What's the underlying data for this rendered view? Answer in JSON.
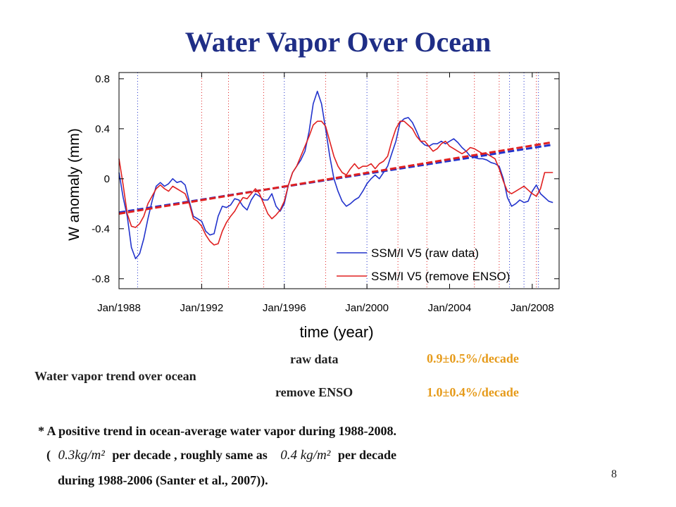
{
  "slide": {
    "title": "Water Vapor Over Ocean",
    "page_number": "8"
  },
  "trend_table": {
    "label": "Water vapor trend over ocean",
    "rows": [
      {
        "name": "raw data",
        "value": "0.9±0.5%/decade"
      },
      {
        "name": "remove ENSO",
        "value": "1.0±0.4%/decade"
      }
    ]
  },
  "note": {
    "line1": "* A positive trend in ocean-average water vapor during 1988-2008.",
    "open_paren": "(",
    "math1": "0.3kg/m²",
    "mid": "per decade , roughly same as",
    "math2": "0.4 kg/m²",
    "end": "per decade",
    "line3": "during 1988-2006 (Santer et al., 2007))."
  },
  "colors": {
    "title": "#1f2e86",
    "raw": "#2233cc",
    "enso": "#e02020",
    "trend_text": "#e69b1b"
  },
  "chart_data": {
    "type": "line",
    "xlabel": "time (year)",
    "ylabel": "W anomaly (mm)",
    "xlim": [
      1988.0,
      2009.3
    ],
    "ylim": [
      -0.88,
      0.85
    ],
    "x_ticks": [
      1988,
      1992,
      1996,
      2000,
      2004,
      2008
    ],
    "x_tick_labels": [
      "Jan/1988",
      "Jan/1992",
      "Jan/1996",
      "Jan/2000",
      "Jan/2004",
      "Jan/2008"
    ],
    "y_ticks": [
      -0.8,
      -0.4,
      0,
      0.4,
      0.8
    ],
    "y_tick_labels": [
      "-0.8",
      "-0.4",
      "0",
      "0.4",
      "0.8"
    ],
    "legend_position": "bottom-right",
    "reference_lines": {
      "blue_dotted": [
        1988.9,
        1996.0,
        2000.0,
        2006.9,
        2007.6,
        2008.3
      ],
      "red_dotted": [
        1992.0,
        1993.3,
        1995.0,
        1998.0,
        2001.5,
        2002.9,
        2005.2,
        2006.4,
        2008.2
      ]
    },
    "series": [
      {
        "name": "SSM/I V5 (raw data)",
        "color": "#2233cc",
        "x": [
          1988.0,
          1988.2,
          1988.4,
          1988.6,
          1988.8,
          1989.0,
          1989.2,
          1989.4,
          1989.6,
          1989.8,
          1990.0,
          1990.2,
          1990.4,
          1990.6,
          1990.8,
          1991.0,
          1991.2,
          1991.4,
          1991.6,
          1991.8,
          1992.0,
          1992.2,
          1992.4,
          1992.6,
          1992.8,
          1993.0,
          1993.2,
          1993.4,
          1993.6,
          1993.8,
          1994.0,
          1994.2,
          1994.4,
          1994.6,
          1994.8,
          1995.0,
          1995.2,
          1995.4,
          1995.6,
          1995.8,
          1996.0,
          1996.2,
          1996.4,
          1996.6,
          1996.8,
          1997.0,
          1997.2,
          1997.4,
          1997.6,
          1997.8,
          1998.0,
          1998.2,
          1998.4,
          1998.6,
          1998.8,
          1999.0,
          1999.2,
          1999.4,
          1999.6,
          1999.8,
          2000.0,
          2000.2,
          2000.4,
          2000.6,
          2000.8,
          2001.0,
          2001.2,
          2001.4,
          2001.6,
          2001.8,
          2002.0,
          2002.2,
          2002.4,
          2002.6,
          2002.8,
          2003.0,
          2003.2,
          2003.4,
          2003.6,
          2003.8,
          2004.0,
          2004.2,
          2004.4,
          2004.6,
          2004.8,
          2005.0,
          2005.2,
          2005.4,
          2005.6,
          2005.8,
          2006.0,
          2006.2,
          2006.4,
          2006.6,
          2006.8,
          2007.0,
          2007.2,
          2007.4,
          2007.6,
          2007.8,
          2008.0,
          2008.2,
          2008.4,
          2008.6,
          2008.8,
          2009.0
        ],
        "values": [
          0.05,
          -0.15,
          -0.3,
          -0.55,
          -0.64,
          -0.6,
          -0.48,
          -0.32,
          -0.18,
          -0.06,
          -0.03,
          -0.06,
          -0.04,
          0.0,
          -0.03,
          -0.02,
          -0.05,
          -0.18,
          -0.3,
          -0.32,
          -0.34,
          -0.42,
          -0.45,
          -0.44,
          -0.3,
          -0.22,
          -0.23,
          -0.21,
          -0.16,
          -0.17,
          -0.22,
          -0.25,
          -0.17,
          -0.12,
          -0.14,
          -0.17,
          -0.17,
          -0.12,
          -0.22,
          -0.26,
          -0.2,
          -0.05,
          0.05,
          0.1,
          0.15,
          0.22,
          0.38,
          0.6,
          0.7,
          0.6,
          0.4,
          0.18,
          0.0,
          -0.1,
          -0.18,
          -0.22,
          -0.2,
          -0.17,
          -0.15,
          -0.1,
          -0.04,
          0.0,
          0.03,
          0.0,
          0.05,
          0.1,
          0.2,
          0.3,
          0.45,
          0.48,
          0.49,
          0.45,
          0.38,
          0.3,
          0.27,
          0.26,
          0.28,
          0.28,
          0.3,
          0.28,
          0.3,
          0.32,
          0.29,
          0.25,
          0.22,
          0.18,
          0.17,
          0.16,
          0.16,
          0.15,
          0.13,
          0.12,
          0.1,
          0.0,
          -0.15,
          -0.22,
          -0.2,
          -0.17,
          -0.19,
          -0.18,
          -0.1,
          -0.05,
          -0.12,
          -0.15,
          -0.18,
          -0.19
        ],
        "trend": [
          [
            1988.0,
            -0.27
          ],
          [
            2008.9,
            0.27
          ]
        ]
      },
      {
        "name": "SSM/I V5 (remove ENSO)",
        "color": "#e02020",
        "x": [
          1988.0,
          1988.2,
          1988.4,
          1988.6,
          1988.8,
          1989.0,
          1989.2,
          1989.4,
          1989.6,
          1989.8,
          1990.0,
          1990.2,
          1990.4,
          1990.6,
          1990.8,
          1991.0,
          1991.2,
          1991.4,
          1991.6,
          1991.8,
          1992.0,
          1992.2,
          1992.4,
          1992.6,
          1992.8,
          1993.0,
          1993.2,
          1993.4,
          1993.6,
          1993.8,
          1994.0,
          1994.2,
          1994.4,
          1994.6,
          1994.8,
          1995.0,
          1995.2,
          1995.4,
          1995.6,
          1995.8,
          1996.0,
          1996.2,
          1996.4,
          1996.6,
          1996.8,
          1997.0,
          1997.2,
          1997.4,
          1997.6,
          1997.8,
          1998.0,
          1998.2,
          1998.4,
          1998.6,
          1998.8,
          1999.0,
          1999.2,
          1999.4,
          1999.6,
          1999.8,
          2000.0,
          2000.2,
          2000.4,
          2000.6,
          2000.8,
          2001.0,
          2001.2,
          2001.4,
          2001.6,
          2001.8,
          2002.0,
          2002.2,
          2002.4,
          2002.6,
          2002.8,
          2003.0,
          2003.2,
          2003.4,
          2003.6,
          2003.8,
          2004.0,
          2004.2,
          2004.4,
          2004.6,
          2004.8,
          2005.0,
          2005.2,
          2005.4,
          2005.6,
          2005.8,
          2006.0,
          2006.2,
          2006.4,
          2006.6,
          2006.8,
          2007.0,
          2007.2,
          2007.4,
          2007.6,
          2007.8,
          2008.0,
          2008.2,
          2008.4,
          2008.6,
          2008.8,
          2009.0
        ],
        "values": [
          0.16,
          -0.05,
          -0.28,
          -0.38,
          -0.39,
          -0.36,
          -0.3,
          -0.2,
          -0.14,
          -0.08,
          -0.05,
          -0.08,
          -0.1,
          -0.06,
          -0.08,
          -0.1,
          -0.12,
          -0.2,
          -0.32,
          -0.34,
          -0.38,
          -0.45,
          -0.5,
          -0.53,
          -0.52,
          -0.42,
          -0.35,
          -0.3,
          -0.26,
          -0.2,
          -0.15,
          -0.16,
          -0.12,
          -0.08,
          -0.12,
          -0.2,
          -0.28,
          -0.32,
          -0.29,
          -0.25,
          -0.18,
          -0.05,
          0.05,
          0.1,
          0.18,
          0.26,
          0.34,
          0.43,
          0.46,
          0.46,
          0.42,
          0.3,
          0.18,
          0.1,
          0.05,
          0.03,
          0.08,
          0.12,
          0.08,
          0.1,
          0.1,
          0.12,
          0.08,
          0.12,
          0.14,
          0.18,
          0.3,
          0.4,
          0.46,
          0.46,
          0.43,
          0.4,
          0.34,
          0.3,
          0.3,
          0.26,
          0.22,
          0.24,
          0.28,
          0.3,
          0.26,
          0.24,
          0.22,
          0.2,
          0.22,
          0.25,
          0.24,
          0.22,
          0.2,
          0.2,
          0.18,
          0.16,
          0.08,
          -0.02,
          -0.1,
          -0.12,
          -0.1,
          -0.08,
          -0.06,
          -0.09,
          -0.12,
          -0.14,
          -0.08,
          0.05,
          0.05,
          0.05
        ],
        "trend": [
          [
            1988.0,
            -0.28
          ],
          [
            2008.9,
            0.29
          ]
        ]
      }
    ]
  }
}
